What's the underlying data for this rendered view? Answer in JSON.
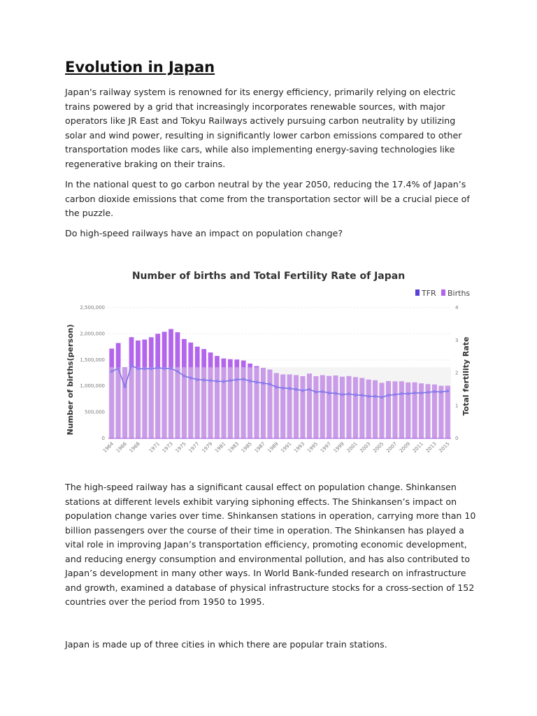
{
  "title": "Evolution in Japan",
  "paragraphs": [
    [
      "Japan's railway system is renowned for its energy efficiency, primarily relying on electric",
      "trains powered by a grid that increasingly incorporates renewable sources, with major",
      "operators like JR East and Tokyu Railways actively pursuing carbon neutrality by utilizing",
      "solar and wind power, resulting in significantly lower carbon emissions compared to other",
      "transportation modes like cars, while also implementing energy-saving technologies like",
      "regenerative braking on their trains."
    ],
    [
      "In the national quest to go carbon neutral by the year 2050, reducing the 17.4% of Japan’s",
      "carbon dioxide emissions that come from the transportation sector will be a crucial piece of",
      "the puzzle."
    ],
    [
      "Do high-speed railways have an impact on population change?"
    ],
    [
      "The high-speed railway has a significant causal effect on population change. Shinkansen",
      "stations at different levels exhibit varying siphoning effects. The Shinkansen’s impact on",
      "population change varies over time. Shinkansen stations in operation, carrying more than 10",
      "billion passengers over the course of their time in operation. The Shinkansen has played a",
      "vital role in improving Japan’s transportation efficiency, promoting economic development,",
      "and reducing energy consumption and environmental pollution, and has also contributed to",
      "Japan’s development in many other ways. In World Bank-funded research on infrastructure",
      "and growth, examined a database of physical infrastructure stocks for a cross-section of 152",
      "countries over the period from 1950 to 1995."
    ],
    [
      "Japan is made up of three cities in which there are popular train stations."
    ]
  ],
  "chart_data": {
    "type": "bar",
    "title": "Number of births and Total Fertility Rate of Japan",
    "ylabel": "Number of births(person)",
    "y2label": "Total fertility Rate",
    "ylim": [
      0,
      2500000
    ],
    "y2lim": [
      0,
      4
    ],
    "yticks": [
      "2,500,000",
      "2,000,000",
      "1,500,000",
      "1,000,000",
      "500,000",
      "0"
    ],
    "y2ticks": [
      "4",
      "3",
      "2",
      "1",
      "0"
    ],
    "grid": true,
    "legend_placement": "top-right",
    "legend": [
      "TFR",
      "Births"
    ],
    "colors": {
      "tfr": "#5b3fd9",
      "births": "#b366ec",
      "births_light": "#c99be8"
    },
    "x": [
      1964,
      1965,
      1966,
      1967,
      1968,
      1969,
      1970,
      1971,
      1972,
      1973,
      1974,
      1975,
      1976,
      1977,
      1978,
      1979,
      1980,
      1981,
      1982,
      1983,
      1984,
      1985,
      1986,
      1987,
      1988,
      1989,
      1990,
      1991,
      1992,
      1993,
      1994,
      1995,
      1996,
      1997,
      1998,
      1999,
      2000,
      2001,
      2002,
      2003,
      2004,
      2005,
      2006,
      2007,
      2008,
      2009,
      2010,
      2011,
      2012,
      2013,
      2014,
      2015
    ],
    "xticks": [
      "1964",
      "1966",
      "1968",
      "1971",
      "1973",
      "1975",
      "1977",
      "1979",
      "1981",
      "1983",
      "1985",
      "1987",
      "1989",
      "1991",
      "1993",
      "1995",
      "1997",
      "1999",
      "2001",
      "2003",
      "2005",
      "2007",
      "2009",
      "2011",
      "2013",
      "2015"
    ],
    "series": [
      {
        "name": "Births",
        "axis": "left",
        "values": [
          1717000,
          1824000,
          1361000,
          1936000,
          1872000,
          1890000,
          1934000,
          2001000,
          2039000,
          2092000,
          2030000,
          1901000,
          1833000,
          1755000,
          1709000,
          1643000,
          1577000,
          1529000,
          1515000,
          1509000,
          1490000,
          1432000,
          1383000,
          1347000,
          1314000,
          1247000,
          1222000,
          1223000,
          1209000,
          1188000,
          1238000,
          1187000,
          1207000,
          1192000,
          1203000,
          1178000,
          1191000,
          1171000,
          1154000,
          1124000,
          1111000,
          1063000,
          1093000,
          1090000,
          1091000,
          1070000,
          1071000,
          1051000,
          1037000,
          1030000,
          1004000,
          1006000
        ]
      },
      {
        "name": "TFR",
        "axis": "right",
        "values": [
          2.05,
          2.14,
          1.58,
          2.23,
          2.13,
          2.13,
          2.13,
          2.16,
          2.14,
          2.14,
          2.05,
          1.91,
          1.85,
          1.8,
          1.79,
          1.77,
          1.75,
          1.74,
          1.77,
          1.8,
          1.81,
          1.76,
          1.72,
          1.69,
          1.66,
          1.57,
          1.54,
          1.53,
          1.5,
          1.46,
          1.5,
          1.42,
          1.43,
          1.39,
          1.38,
          1.34,
          1.36,
          1.33,
          1.32,
          1.29,
          1.29,
          1.26,
          1.32,
          1.34,
          1.37,
          1.37,
          1.39,
          1.39,
          1.41,
          1.43,
          1.42,
          1.45
        ]
      }
    ]
  }
}
